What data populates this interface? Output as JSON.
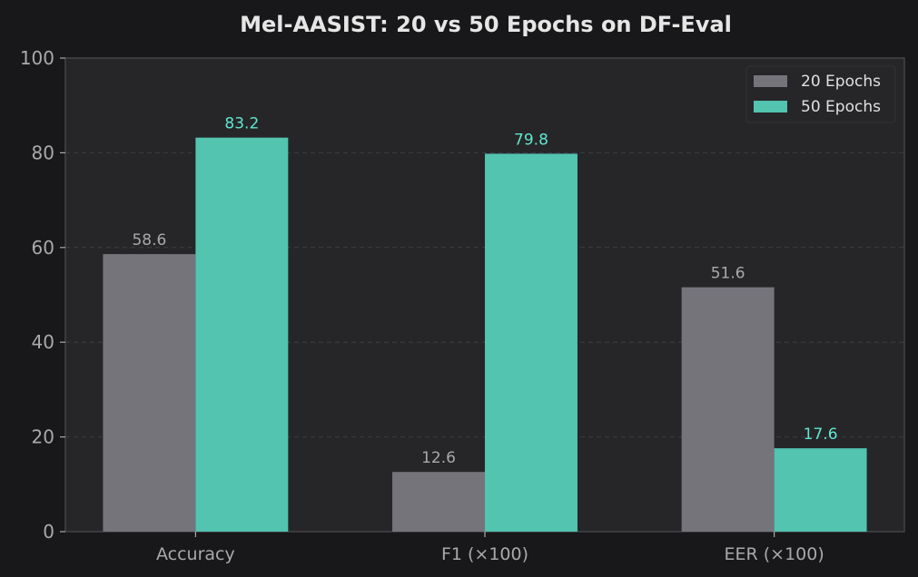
{
  "chart_data": {
    "type": "bar",
    "title": "Mel-AASIST: 20 vs 50 Epochs on DF-Eval",
    "xlabel": "",
    "ylabel": "",
    "categories": [
      "Accuracy",
      "F1 (×100)",
      "EER (×100)"
    ],
    "series": [
      {
        "name": "20 Epochs",
        "values": [
          58.6,
          12.6,
          51.6
        ],
        "color": "#76747b",
        "label_color": "#a9a9ad"
      },
      {
        "name": "50 Epochs",
        "values": [
          83.2,
          79.8,
          17.6
        ],
        "color": "#52c4b0",
        "label_color": "#5fe6cf"
      }
    ],
    "ylim": [
      0,
      100
    ],
    "yticks": [
      0,
      20,
      40,
      60,
      80,
      100
    ],
    "grid": true,
    "legend_position": "top-right"
  }
}
